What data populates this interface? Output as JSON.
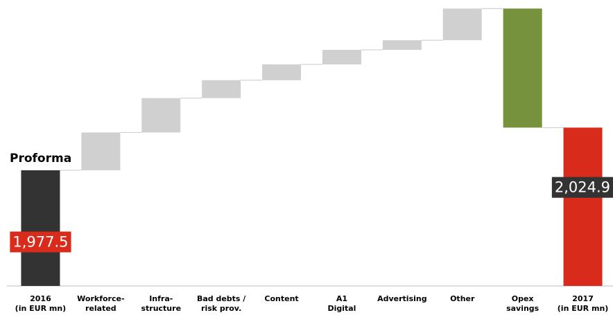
{
  "chart_data": {
    "type": "waterfall",
    "annotation": "Proforma",
    "categories": [
      [
        "2016",
        "(in EUR mn)"
      ],
      [
        "Workforce-",
        "related"
      ],
      [
        "Infra-",
        "structure"
      ],
      [
        "Bad debts /",
        "risk prov."
      ],
      [
        "Content"
      ],
      [
        "A1",
        "Digital"
      ],
      [
        "Advertising"
      ],
      [
        "Other"
      ],
      [
        "Opex",
        "savings"
      ],
      [
        "2017",
        "(in EUR mn)"
      ]
    ],
    "values": [
      1977.5,
      42.0,
      38.2,
      19.9,
      17.6,
      16.1,
      10.7,
      35.2,
      -132.3,
      2024.9
    ],
    "value_labels": [
      "1,977.5",
      null,
      null,
      null,
      null,
      null,
      null,
      null,
      null,
      "2,024.9"
    ],
    "colors": [
      "#333333",
      "#d0d0d0",
      "#d0d0d0",
      "#d0d0d0",
      "#d0d0d0",
      "#d0d0d0",
      "#d0d0d0",
      "#d0d0d0",
      "#76923c",
      "#d92b1c"
    ],
    "label_colors": [
      "#d92b1c",
      null,
      null,
      null,
      null,
      null,
      null,
      null,
      null,
      "#333333"
    ],
    "ylim": [
      1849,
      2159
    ]
  }
}
